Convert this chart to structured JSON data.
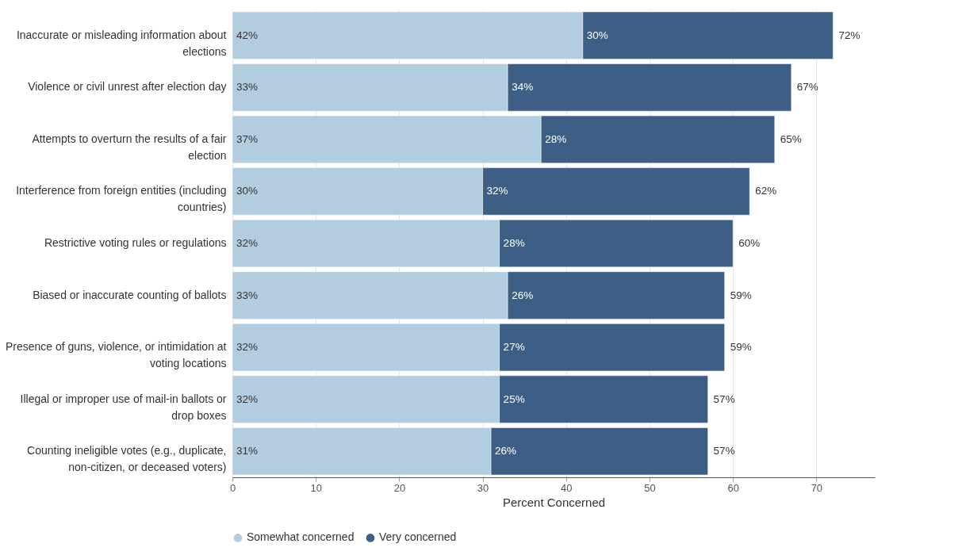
{
  "chart_data": {
    "type": "bar",
    "orientation": "horizontal",
    "stacked": true,
    "categories": [
      "Inaccurate or misleading information about elections",
      "Violence or civil unrest after election day",
      "Attempts to overturn the results of a fair election",
      "Interference from foreign entities (including countries)",
      "Restrictive voting rules or regulations",
      "Biased or inaccurate counting of ballots",
      "Presence of guns, violence, or intimidation at voting locations",
      "Illegal or improper use of mail-in ballots or drop boxes",
      "Counting ineligible votes (e.g., duplicate, non-citizen, or deceased voters)"
    ],
    "series": [
      {
        "name": "Somewhat concerned",
        "color": "#b3cde0",
        "values": [
          42,
          33,
          37,
          30,
          32,
          33,
          32,
          32,
          31
        ],
        "value_labels": [
          "42%",
          "33%",
          "37%",
          "30%",
          "32%",
          "33%",
          "32%",
          "32%",
          "31%"
        ]
      },
      {
        "name": "Very concerned",
        "color": "#3e5f85",
        "values": [
          30,
          34,
          28,
          32,
          28,
          26,
          27,
          25,
          26
        ],
        "value_labels": [
          "30%",
          "34%",
          "28%",
          "32%",
          "28%",
          "26%",
          "27%",
          "25%",
          "26%"
        ]
      }
    ],
    "totals": [
      "72%",
      "67%",
      "65%",
      "62%",
      "60%",
      "59%",
      "59%",
      "57%",
      "57%"
    ],
    "xlabel": "Percent Concerned",
    "xlim": [
      0,
      77
    ],
    "xticks": [
      0,
      10,
      20,
      30,
      40,
      50,
      60,
      70
    ],
    "grid": "x",
    "legend": "bottom"
  }
}
